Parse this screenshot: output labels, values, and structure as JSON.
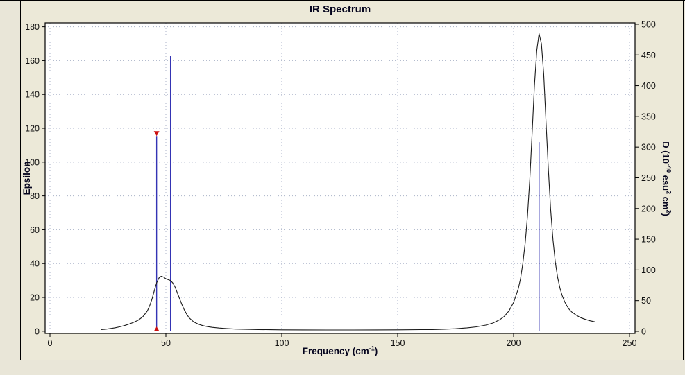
{
  "window": {
    "background": "#ece9d8",
    "outer_background": "#e9e6d8",
    "frame_border": "#000000"
  },
  "chart_data": {
    "type": "line",
    "title": "IR Spectrum",
    "xlabel": {
      "pre": "Frequency (cm",
      "sup": "-1",
      "post": ")"
    },
    "ylabel_left": "Epsilon",
    "ylabel_right": {
      "p1": "D (10",
      "s1": "-40",
      "p2": " esu",
      "s2": "2",
      "p3": " cm",
      "s3": "2",
      "p4": ")"
    },
    "x_ticks": [
      0,
      50,
      100,
      150,
      200,
      250
    ],
    "yl_ticks": [
      0,
      20,
      40,
      60,
      80,
      100,
      120,
      140,
      160,
      180
    ],
    "yr_ticks": [
      0,
      50,
      100,
      150,
      200,
      250,
      300,
      350,
      400,
      450,
      500
    ],
    "x_range": [
      -2.1,
      252.4
    ],
    "yl_range": [
      -1.3,
      182.3
    ],
    "yr_range": [
      -3.4,
      502.2
    ],
    "grid": {
      "show": true,
      "style": "dotted",
      "color": "#aab2c8"
    },
    "colors": {
      "curve": "#1a1a1a",
      "stick": "#3434b4",
      "selected_marker": "#cc1111",
      "plot_bg": "#ffffff",
      "axis": "#000000"
    },
    "legend": null,
    "series": [
      {
        "name": "epsilon-curve",
        "axis": "left",
        "x": [
          22,
          24,
          26,
          28,
          30,
          32,
          34,
          36,
          38,
          40,
          42,
          43,
          44,
          45,
          46,
          47,
          48,
          49,
          50,
          51,
          52,
          53,
          54,
          55,
          56,
          57,
          58,
          59,
          60,
          62,
          64,
          66,
          68,
          70,
          73,
          76,
          80,
          85,
          90,
          95,
          100,
          110,
          120,
          130,
          140,
          150,
          160,
          165,
          170,
          175,
          180,
          184,
          188,
          191,
          194,
          196,
          198,
          200,
          202,
          203,
          204,
          205,
          206,
          207,
          208,
          209,
          210,
          211,
          212,
          213,
          214,
          215,
          216,
          217,
          218,
          219,
          220,
          221,
          222,
          223,
          224,
          225,
          227,
          229,
          231,
          233,
          235
        ],
        "y": [
          1.0,
          1.2,
          1.6,
          2.0,
          2.6,
          3.3,
          4.2,
          5.2,
          6.5,
          8.5,
          12,
          15,
          19,
          24,
          28.5,
          31.5,
          32.5,
          32,
          31,
          30.5,
          30,
          28.5,
          26,
          22.5,
          19,
          15.5,
          12.5,
          10,
          8,
          5.5,
          4.2,
          3.3,
          2.7,
          2.3,
          1.9,
          1.6,
          1.3,
          1.1,
          1.0,
          0.9,
          0.85,
          0.8,
          0.75,
          0.75,
          0.8,
          0.85,
          0.95,
          1.0,
          1.2,
          1.5,
          2.0,
          2.6,
          3.6,
          4.8,
          6.8,
          8.8,
          12,
          17,
          25,
          31,
          40,
          52,
          68,
          90,
          117,
          145,
          166,
          176,
          170,
          152,
          124,
          96,
          72,
          54,
          41,
          32,
          25.5,
          21,
          17.5,
          15,
          13,
          11.5,
          9.5,
          8,
          7,
          6.2,
          5.6
        ]
      }
    ],
    "sticks": [
      {
        "x": 46,
        "d": 318,
        "axis": "right",
        "selected": true
      },
      {
        "x": 52,
        "d": 448,
        "axis": "right",
        "selected": false
      },
      {
        "x": 211,
        "d": 308,
        "axis": "right",
        "selected": false
      }
    ]
  }
}
